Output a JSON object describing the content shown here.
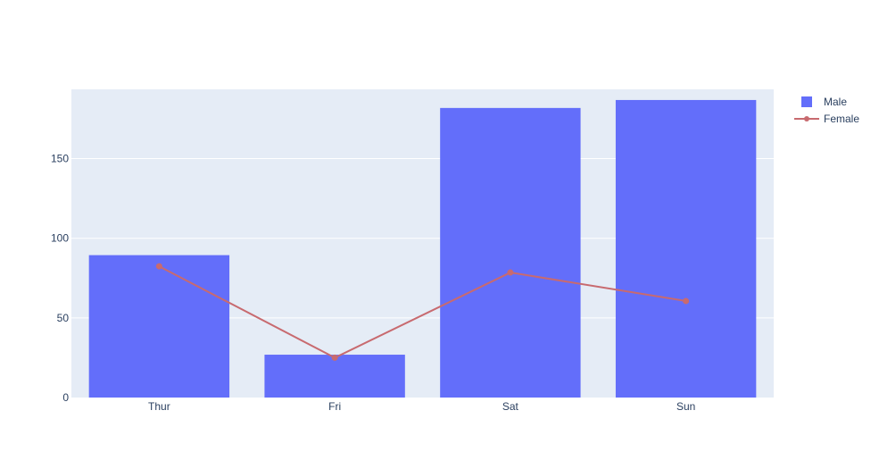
{
  "chart_data": {
    "type": "bar",
    "categories": [
      "Thur",
      "Fri",
      "Sat",
      "Sun"
    ],
    "series": [
      {
        "name": "Male",
        "type": "bar",
        "color": "#636efa",
        "values": [
          89.4,
          26.9,
          181.8,
          186.8
        ]
      },
      {
        "name": "Female",
        "type": "line",
        "color": "#c86a6f",
        "values": [
          82.4,
          25.0,
          78.5,
          60.6
        ]
      }
    ],
    "ylim": [
      0,
      193.5
    ],
    "yticks": [
      0,
      50,
      100,
      150
    ],
    "grid": true,
    "legend": "top-right",
    "plot_background": "#e5ecf6"
  }
}
